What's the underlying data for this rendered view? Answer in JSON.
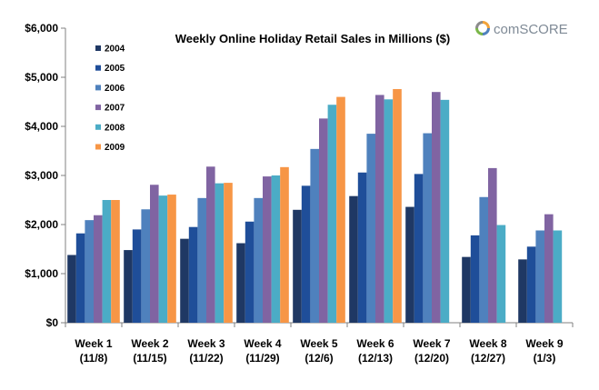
{
  "brand": {
    "name": "comScore",
    "logo_text": "comSCORE"
  },
  "chart_data": {
    "type": "bar",
    "title": "Weekly Online Holiday Retail Sales in Millions ($)",
    "xlabel": "",
    "ylabel": "",
    "categories": [
      [
        "Week 1",
        "(11/8)"
      ],
      [
        "Week 2",
        "(11/15)"
      ],
      [
        "Week 3",
        "(11/22)"
      ],
      [
        "Week 4",
        "(11/29)"
      ],
      [
        "Week 5",
        "(12/6)"
      ],
      [
        "Week 6",
        "(12/13)"
      ],
      [
        "Week 7",
        "(12/20)"
      ],
      [
        "Week 8",
        "(12/27)"
      ],
      [
        "Week 9",
        "(1/3)"
      ]
    ],
    "ylim": [
      0,
      6000
    ],
    "yticks": [
      0,
      1000,
      2000,
      3000,
      4000,
      5000,
      6000
    ],
    "ytick_labels": [
      "$0",
      "$1,000",
      "$2,000",
      "$3,000",
      "$4,000",
      "$5,000",
      "$6,000"
    ],
    "grid": false,
    "legend_position": "top-left",
    "series": [
      {
        "name": "2004",
        "color": "#1f3864",
        "values": [
          1380,
          1480,
          1710,
          1620,
          2300,
          2580,
          2360,
          1340,
          1290
        ]
      },
      {
        "name": "2005",
        "color": "#1f4e99",
        "values": [
          1820,
          1900,
          1950,
          2060,
          2790,
          3060,
          3030,
          1780,
          1550
        ]
      },
      {
        "name": "2006",
        "color": "#4f81bd",
        "values": [
          2090,
          2310,
          2540,
          2540,
          3540,
          3850,
          3860,
          2560,
          1880
        ]
      },
      {
        "name": "2007",
        "color": "#8064a2",
        "values": [
          2190,
          2810,
          3180,
          2980,
          4160,
          4640,
          4700,
          3150,
          2210
        ]
      },
      {
        "name": "2008",
        "color": "#4bacc6",
        "values": [
          2500,
          2590,
          2840,
          3000,
          4440,
          4550,
          4540,
          1990,
          1880
        ]
      },
      {
        "name": "2009",
        "color": "#f79646",
        "values": [
          2500,
          2610,
          2850,
          3170,
          4600,
          4760,
          null,
          null,
          null
        ]
      }
    ]
  }
}
